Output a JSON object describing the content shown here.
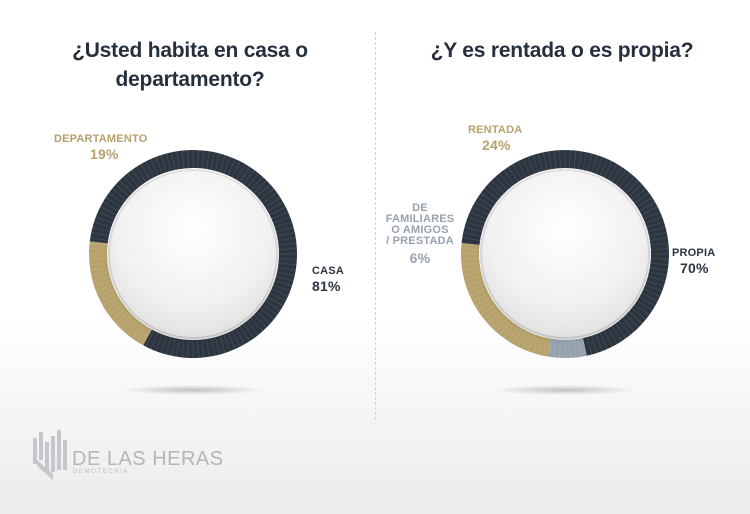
{
  "chart_data": [
    {
      "type": "pie",
      "variant": "donut",
      "title": "¿Usted habita en casa o departamento?",
      "slices": [
        {
          "label": "CASA",
          "value": 81,
          "display": "81%",
          "color": "#2c3540"
        },
        {
          "label": "DEPARTAMENTO",
          "value": 19,
          "display": "19%",
          "color": "#b7a26b"
        }
      ]
    },
    {
      "type": "pie",
      "variant": "donut",
      "title": "¿Y es rentada o es propia?",
      "slices": [
        {
          "label": "PROPIA",
          "value": 70,
          "display": "70%",
          "color": "#2c3540"
        },
        {
          "label": "DE FAMILIARES O AMIGOS / PRESTADA",
          "value": 6,
          "display": "6%",
          "color": "#96a3ae"
        },
        {
          "label": "RENTADA",
          "value": 24,
          "display": "24%",
          "color": "#b7a26b"
        }
      ]
    }
  ],
  "labels": {
    "casa": "CASA",
    "departamento": "DEPARTAMENTO",
    "propia": "PROPIA",
    "rentada": "RENTADA",
    "familiares_line1": "DE",
    "familiares_line2": "FAMILIARES",
    "familiares_line3": "O AMIGOS",
    "familiares_line4": "/ PRESTADA"
  },
  "brand": {
    "name": "DE LAS HERAS",
    "tagline": "DEMOTECNIA"
  }
}
